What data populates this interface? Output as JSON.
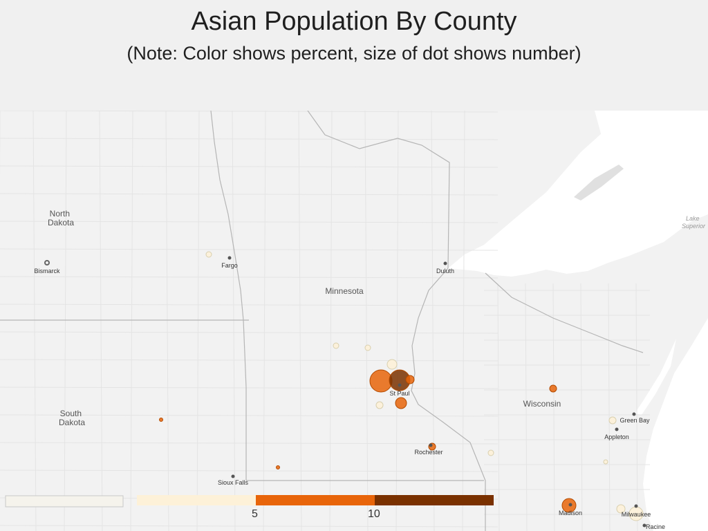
{
  "title": "Asian Population By County",
  "subtitle": "(Note: Color shows percent, size of dot shows number)",
  "colors": {
    "background": "#f0f0f0",
    "water": "#ffffff",
    "land": "#f2f2f2",
    "low": "#fdf1d8",
    "mid": "#e8650a",
    "high": "#7a3100",
    "null": "#f5f3ec"
  },
  "map": {
    "states": [
      {
        "key": "nd",
        "lines": [
          "North",
          "Dakota"
        ]
      },
      {
        "key": "sd",
        "lines": [
          "South",
          "Dakota"
        ]
      },
      {
        "key": "mn",
        "lines": [
          "Minnesota"
        ]
      },
      {
        "key": "wi",
        "lines": [
          "Wisconsin"
        ]
      }
    ],
    "cities": [
      {
        "key": "bismarck",
        "name": "Bismarck"
      },
      {
        "key": "fargo",
        "name": "Fargo"
      },
      {
        "key": "duluth",
        "name": "Duluth"
      },
      {
        "key": "stpaul",
        "name": "St Paul"
      },
      {
        "key": "rochester",
        "name": "Rochester"
      },
      {
        "key": "greenbay",
        "name": "Green Bay"
      },
      {
        "key": "appleton",
        "name": "Appleton"
      },
      {
        "key": "madison",
        "name": "Madison"
      },
      {
        "key": "milwaukee",
        "name": "Milwaukee"
      },
      {
        "key": "racine",
        "name": "Racine"
      },
      {
        "key": "siouxfalls",
        "name": "Sioux Falls"
      }
    ],
    "water_labels": [
      {
        "key": "superior",
        "lines": [
          "Lake",
          "Superior"
        ]
      }
    ],
    "bubbles": [
      {
        "key": "hennepin",
        "pct": 7.0
      },
      {
        "key": "ramsey",
        "pct": 12.0
      },
      {
        "key": "washington",
        "pct": 6.5
      },
      {
        "key": "anoka",
        "pct": 4.0
      },
      {
        "key": "dakota",
        "pct": 6.0
      },
      {
        "key": "scott",
        "pct": 3.5
      },
      {
        "key": "olmsted",
        "pct": 6.0
      },
      {
        "key": "dane",
        "pct": 6.0
      },
      {
        "key": "marathon",
        "pct": 6.0
      },
      {
        "key": "milwaukee",
        "pct": 3.5
      },
      {
        "key": "brown",
        "pct": 2.5
      },
      {
        "key": "sherburne",
        "pct": 1.5
      },
      {
        "key": "stearns",
        "pct": 2.0
      },
      {
        "key": "clay",
        "pct": 2.0
      },
      {
        "key": "nobles",
        "pct": 5.5
      },
      {
        "key": "brookings",
        "pct": 5.0
      },
      {
        "key": "waukesha",
        "pct": 3.0
      },
      {
        "key": "outagamie",
        "pct": 2.5
      },
      {
        "key": "lacrosse",
        "pct": 4.0
      }
    ]
  },
  "legend": {
    "null_swatch_color": "#f5f3ec",
    "bins": [
      {
        "color": "#fdf1d8"
      },
      {
        "color": "#e8650a"
      },
      {
        "color": "#7a3100"
      }
    ],
    "tick_5": "5",
    "tick_10": "10"
  }
}
